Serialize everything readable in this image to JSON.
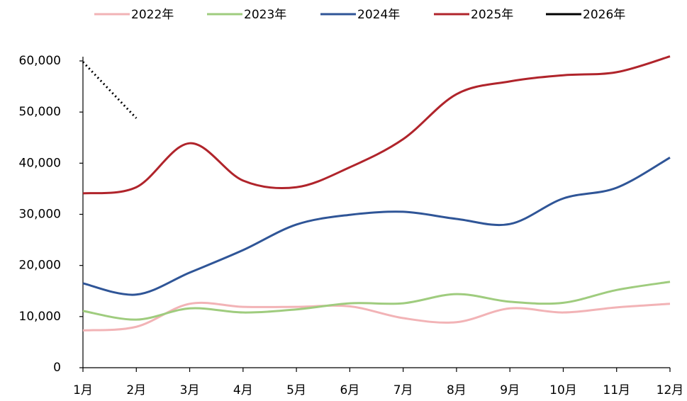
{
  "chart_data": {
    "type": "line",
    "categories": [
      "1月",
      "2月",
      "3月",
      "4月",
      "5月",
      "6月",
      "7月",
      "8月",
      "9月",
      "10月",
      "11月",
      "12月"
    ],
    "series": [
      {
        "name": "2022年",
        "color": "#f2b3b6",
        "values": [
          7300,
          8000,
          12500,
          11900,
          11900,
          12000,
          9700,
          8900,
          11600,
          10800,
          11800,
          12500
        ]
      },
      {
        "name": "2023年",
        "color": "#9fcc7e",
        "values": [
          11100,
          9400,
          11600,
          10800,
          11400,
          12600,
          12600,
          14400,
          12900,
          12700,
          15200,
          16800
        ]
      },
      {
        "name": "2024年",
        "color": "#2f5597",
        "values": [
          16500,
          14300,
          18600,
          23000,
          28000,
          29900,
          30500,
          29100,
          28100,
          33100,
          35200,
          41100
        ]
      },
      {
        "name": "2025年",
        "color": "#b0242b",
        "values": [
          34100,
          35300,
          43900,
          36600,
          35300,
          39200,
          44700,
          53500,
          56000,
          57200,
          57800,
          60900
        ]
      },
      {
        "name": "2026年",
        "color": "#000000",
        "dashed": true,
        "values": [
          59800,
          48800,
          null,
          null,
          null,
          null,
          null,
          null,
          null,
          null,
          null,
          null
        ]
      }
    ],
    "ylim": [
      0,
      60000
    ],
    "yticks": [
      0,
      {
        "value": 10000,
        "label": "10,000"
      },
      {
        "value": 20000,
        "label": "20,000"
      },
      {
        "value": 30000,
        "label": "30,000"
      },
      {
        "value": 40000,
        "label": "40,000"
      },
      {
        "value": 50000,
        "label": "50,000"
      },
      {
        "value": 60000,
        "label": "60,000"
      }
    ],
    "legend": "top"
  }
}
